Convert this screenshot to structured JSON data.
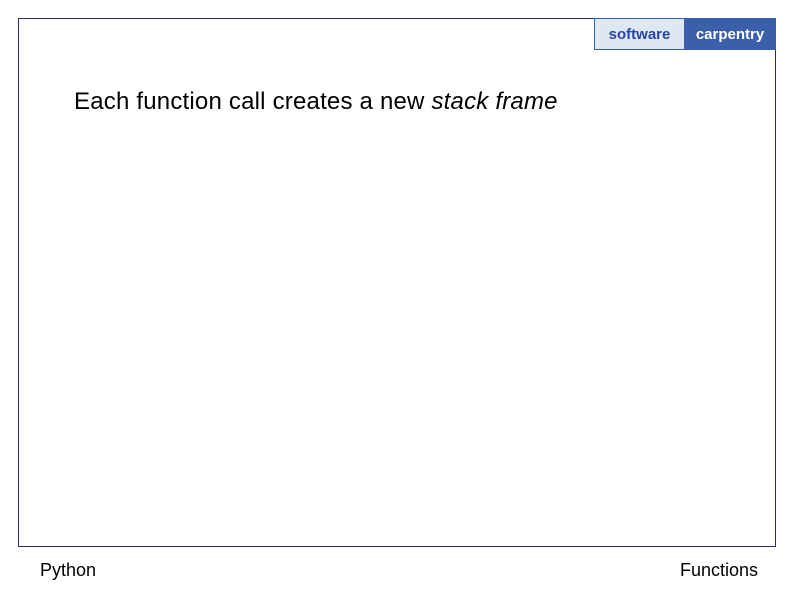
{
  "logo": {
    "left_text": "software",
    "right_text": "carpentry",
    "left_bg": "#dfe7f3",
    "right_bg": "#3b5fa8",
    "left_color": "#2646a6",
    "right_color": "#ffffff",
    "border_color": "#3b5fa8"
  },
  "slide": {
    "main_text_prefix": "Each function call creates a new ",
    "main_text_italic": "stack frame",
    "footer_left": "Python",
    "footer_right": "Functions",
    "frame_border_color": "#2a2a6a",
    "background_color": "#ffffff",
    "main_fontsize": 24,
    "footer_fontsize": 18
  }
}
